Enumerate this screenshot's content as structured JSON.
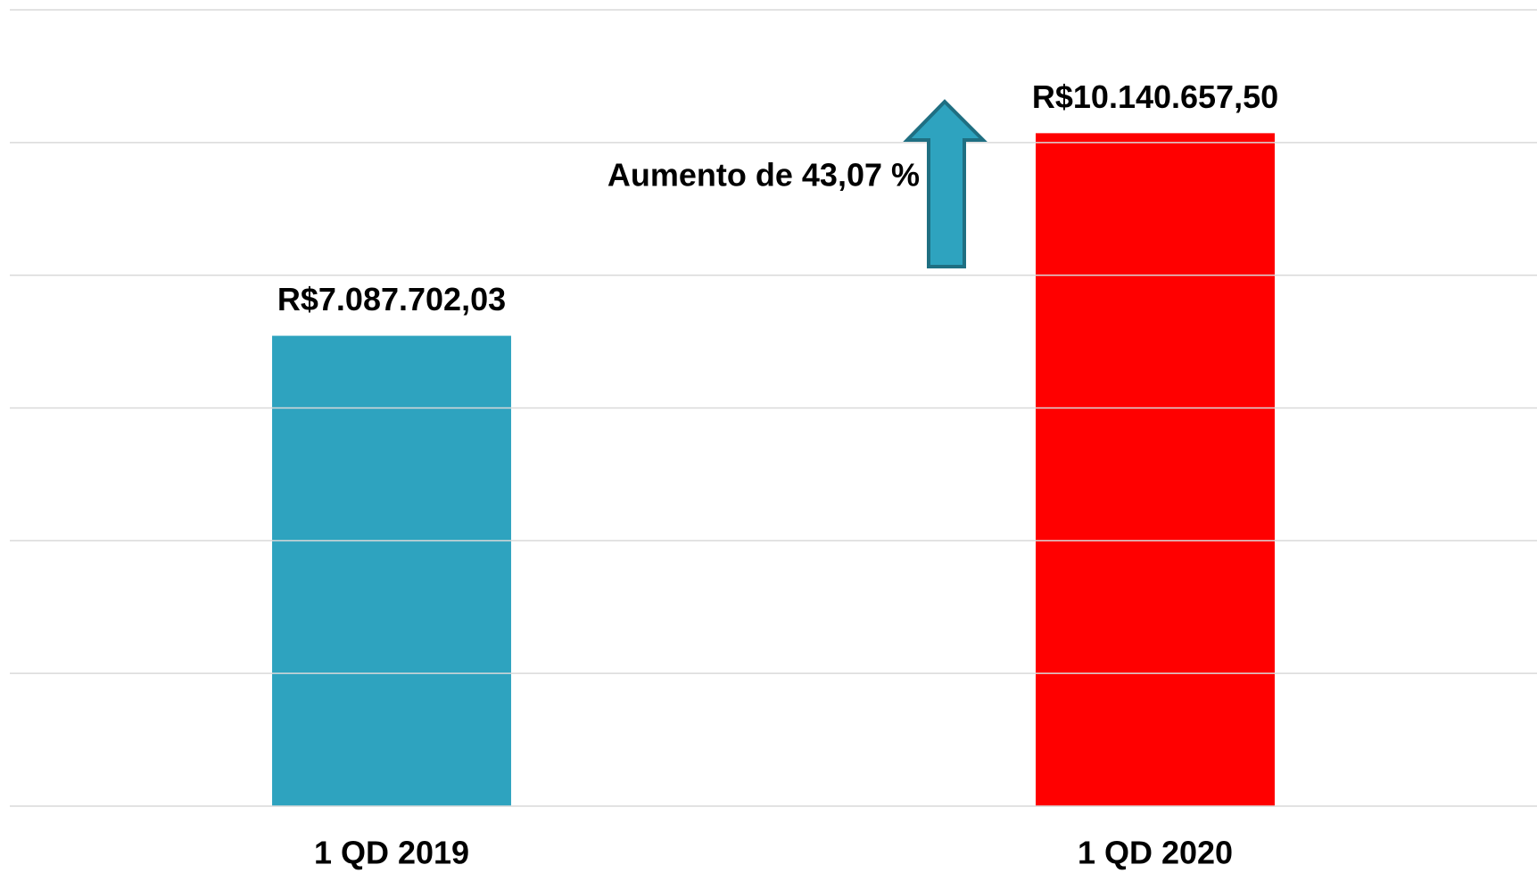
{
  "chart_data": {
    "type": "bar",
    "categories": [
      "1 QD 2019",
      "1 QD 2020"
    ],
    "values": [
      7087702.03,
      10140657.5
    ],
    "value_labels": [
      "R$7.087.702,03",
      "R$10.140.657,50"
    ],
    "colors": [
      "#2ea3bf",
      "#ff0000"
    ],
    "ylim": [
      0,
      12000000
    ],
    "yticks": [
      0,
      2000000,
      4000000,
      6000000,
      8000000,
      10000000,
      12000000
    ],
    "grid": true,
    "annotation": "Aumento de 43,07 %"
  }
}
